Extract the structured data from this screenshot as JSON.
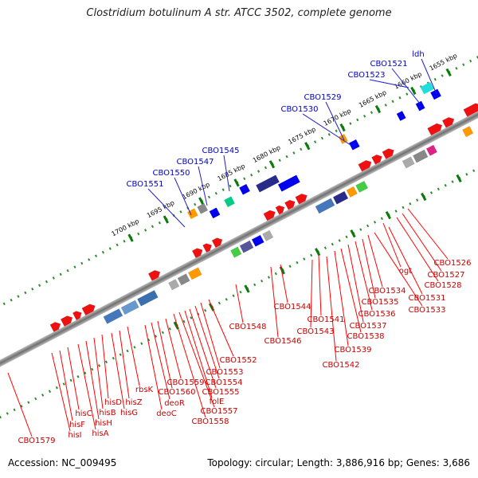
{
  "title": "Clostridium botulinum A str. ATCC 3502, complete genome",
  "footer": {
    "accession": "Accession: NC_009495",
    "summary": "Topology: circular; Length: 3,886,916 bp; Genes: 3,686"
  },
  "colors": {
    "backbone": "#888888",
    "tick_green": "#2e8b2e",
    "label_blue": "#0000cc",
    "label_red": "#cc0000",
    "leader_blue": "#2020cc",
    "leader_red": "#ff0000"
  },
  "scale": {
    "labels": [
      "1655 kbp",
      "1660 kbp",
      "1665 kbp",
      "1670 kbp",
      "1675 kbp",
      "1680 kbp",
      "1685 kbp",
      "1690 kbp",
      "1695 kbp",
      "1700 kbp"
    ]
  },
  "upper_labels": [
    "ldh",
    "CBO1521",
    "CBO1523",
    "CBO1529",
    "CBO1530",
    "CBO1545",
    "CBO1547",
    "CBO1550",
    "CBO1551"
  ],
  "lower_labels": [
    "CBO1526",
    "CBO1527",
    "CBO1528",
    "ogt",
    "CBO1531",
    "CBO1533",
    "CBO1534",
    "CBO1535",
    "CBO1536",
    "CBO1537",
    "CBO1538",
    "CBO1539",
    "CBO1541",
    "CBO1542",
    "CBO1543",
    "CBO1544",
    "CBO1546",
    "CBO1548",
    "CBO1552",
    "CBO1553",
    "CBO1554",
    "CBO1555",
    "folE",
    "CBO1557",
    "CBO1558",
    "CBO1559",
    "CBO1560",
    "deoR",
    "deoC",
    "rbsK",
    "hisZ",
    "hisG",
    "hisD",
    "hisB",
    "hisH",
    "hisA",
    "hisC",
    "hisF",
    "hisI",
    "CBO1579"
  ]
}
